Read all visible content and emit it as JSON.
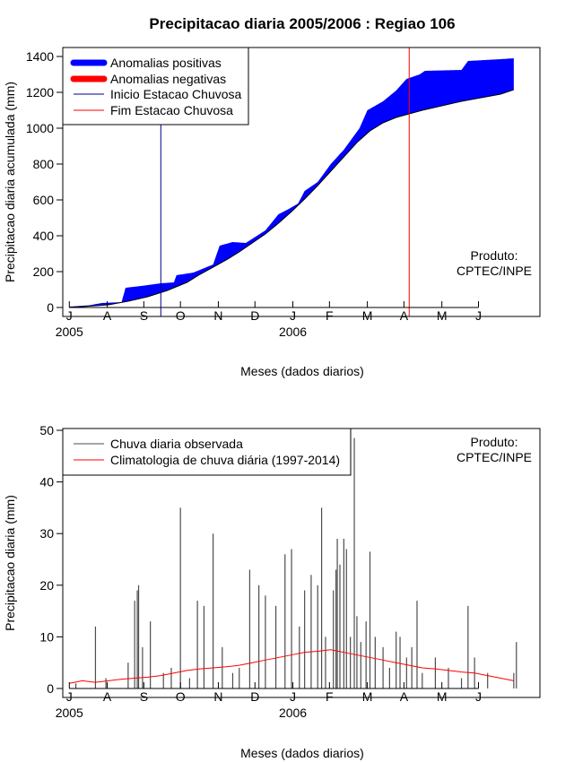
{
  "title": "Precipitacao diaria 2005/2006 : Regiao 106",
  "chart_data": [
    {
      "type": "area",
      "ylabel": "Precipitacao diaria acumulada (mm)",
      "xlabel": "Meses (dados diarios)",
      "ylim": [
        0,
        1400
      ],
      "yticks": [
        0,
        200,
        400,
        600,
        800,
        1000,
        1200,
        1400
      ],
      "xlim_days": [
        -5,
        360
      ],
      "month_ticks": [
        {
          "label": "J",
          "day": 0
        },
        {
          "label": "A",
          "day": 29
        },
        {
          "label": "S",
          "day": 57
        },
        {
          "label": "O",
          "day": 85
        },
        {
          "label": "N",
          "day": 114
        },
        {
          "label": "D",
          "day": 142
        },
        {
          "label": "J",
          "day": 171
        },
        {
          "label": "F",
          "day": 199
        },
        {
          "label": "M",
          "day": 228
        },
        {
          "label": "A",
          "day": 256
        },
        {
          "label": "M",
          "day": 285
        },
        {
          "label": "J",
          "day": 313
        }
      ],
      "year_labels": [
        {
          "label": "2005",
          "day": 0
        },
        {
          "label": "2006",
          "day": 171
        }
      ],
      "legend": {
        "position": "top-left",
        "entries": [
          {
            "label": "Anomalias positivas",
            "color": "#0000ff",
            "style": "thick"
          },
          {
            "label": "Anomalias negativas",
            "color": "#ff0000",
            "style": "thick"
          },
          {
            "label": "Inicio Estacao Chuvosa",
            "color": "#00008b",
            "style": "thin"
          },
          {
            "label": "Fim Estacao Chuvosa",
            "color": "#ff0000",
            "style": "thin"
          }
        ]
      },
      "product_label": [
        "Produto:",
        "CPTEC/INPE"
      ],
      "rainy_season_start_day": 70,
      "rainy_season_end_day": 260,
      "observed_accumulated": [
        [
          0,
          5
        ],
        [
          15,
          12
        ],
        [
          25,
          25
        ],
        [
          40,
          30
        ],
        [
          43,
          110
        ],
        [
          55,
          120
        ],
        [
          70,
          135
        ],
        [
          80,
          140
        ],
        [
          82,
          180
        ],
        [
          95,
          195
        ],
        [
          110,
          240
        ],
        [
          115,
          345
        ],
        [
          125,
          365
        ],
        [
          135,
          360
        ],
        [
          150,
          430
        ],
        [
          160,
          520
        ],
        [
          168,
          550
        ],
        [
          175,
          580
        ],
        [
          180,
          650
        ],
        [
          190,
          700
        ],
        [
          200,
          800
        ],
        [
          210,
          880
        ],
        [
          215,
          930
        ],
        [
          222,
          1000
        ],
        [
          228,
          1100
        ],
        [
          240,
          1150
        ],
        [
          250,
          1210
        ],
        [
          258,
          1275
        ],
        [
          268,
          1300
        ],
        [
          272,
          1320
        ],
        [
          300,
          1325
        ],
        [
          305,
          1375
        ],
        [
          330,
          1385
        ],
        [
          340,
          1390
        ]
      ],
      "climatology_accumulated": [
        [
          0,
          0
        ],
        [
          30,
          15
        ],
        [
          45,
          35
        ],
        [
          60,
          60
        ],
        [
          75,
          95
        ],
        [
          90,
          140
        ],
        [
          100,
          185
        ],
        [
          110,
          225
        ],
        [
          120,
          265
        ],
        [
          130,
          310
        ],
        [
          140,
          360
        ],
        [
          150,
          410
        ],
        [
          160,
          470
        ],
        [
          170,
          535
        ],
        [
          180,
          605
        ],
        [
          190,
          680
        ],
        [
          200,
          760
        ],
        [
          210,
          840
        ],
        [
          220,
          920
        ],
        [
          230,
          985
        ],
        [
          240,
          1030
        ],
        [
          250,
          1060
        ],
        [
          260,
          1080
        ],
        [
          270,
          1100
        ],
        [
          285,
          1125
        ],
        [
          300,
          1150
        ],
        [
          315,
          1170
        ],
        [
          330,
          1190
        ],
        [
          340,
          1215
        ]
      ]
    },
    {
      "type": "bar",
      "ylabel": "Precipitacao diaria (mm)",
      "xlabel": "Meses (dados diarios)",
      "ylim": [
        0,
        50
      ],
      "yticks": [
        0,
        10,
        20,
        30,
        40,
        50
      ],
      "legend": {
        "position": "top-left",
        "entries": [
          {
            "label": "Chuva diaria observada",
            "color": "#4d4d4d"
          },
          {
            "label": "Climatologia de chuva diária (1997-2014)",
            "color": "#ff0000"
          }
        ]
      },
      "product_label": [
        "Produto:",
        "CPTEC/INPE"
      ],
      "observed_daily": [
        [
          5,
          1
        ],
        [
          20,
          12
        ],
        [
          28,
          2
        ],
        [
          45,
          5
        ],
        [
          50,
          17
        ],
        [
          52,
          19
        ],
        [
          53,
          20
        ],
        [
          56,
          8
        ],
        [
          62,
          13
        ],
        [
          72,
          3
        ],
        [
          78,
          4
        ],
        [
          85,
          35
        ],
        [
          92,
          2
        ],
        [
          98,
          17
        ],
        [
          103,
          16
        ],
        [
          110,
          30
        ],
        [
          117,
          8
        ],
        [
          125,
          3
        ],
        [
          130,
          4
        ],
        [
          138,
          23
        ],
        [
          145,
          20
        ],
        [
          150,
          18
        ],
        [
          158,
          16
        ],
        [
          165,
          26
        ],
        [
          170,
          27
        ],
        [
          176,
          12
        ],
        [
          180,
          19
        ],
        [
          185,
          22
        ],
        [
          190,
          20
        ],
        [
          193,
          35
        ],
        [
          196,
          10
        ],
        [
          202,
          19
        ],
        [
          204,
          23
        ],
        [
          205,
          29
        ],
        [
          207,
          24
        ],
        [
          210,
          29
        ],
        [
          212,
          27
        ],
        [
          215,
          10
        ],
        [
          218,
          48.5
        ],
        [
          220,
          14
        ],
        [
          223,
          9
        ],
        [
          227,
          13
        ],
        [
          230,
          26.5
        ],
        [
          234,
          10
        ],
        [
          240,
          8
        ],
        [
          245,
          4
        ],
        [
          250,
          11
        ],
        [
          253,
          10
        ],
        [
          258,
          6
        ],
        [
          262,
          8
        ],
        [
          266,
          17
        ],
        [
          270,
          3
        ],
        [
          280,
          6
        ],
        [
          290,
          4
        ],
        [
          300,
          2
        ],
        [
          305,
          16
        ],
        [
          310,
          6
        ],
        [
          320,
          3
        ],
        [
          340,
          3
        ],
        [
          342,
          9
        ]
      ],
      "climatology_daily": [
        [
          0,
          1
        ],
        [
          10,
          1.5
        ],
        [
          20,
          1.2
        ],
        [
          30,
          1.5
        ],
        [
          40,
          1.8
        ],
        [
          50,
          2
        ],
        [
          60,
          2.2
        ],
        [
          70,
          2.5
        ],
        [
          80,
          3
        ],
        [
          90,
          3.5
        ],
        [
          100,
          3.8
        ],
        [
          110,
          4
        ],
        [
          120,
          4.2
        ],
        [
          130,
          4.5
        ],
        [
          140,
          5
        ],
        [
          150,
          5.5
        ],
        [
          160,
          6
        ],
        [
          170,
          6.5
        ],
        [
          180,
          7
        ],
        [
          190,
          7.2
        ],
        [
          200,
          7.5
        ],
        [
          210,
          7
        ],
        [
          220,
          6.5
        ],
        [
          230,
          6
        ],
        [
          240,
          5.5
        ],
        [
          250,
          5
        ],
        [
          260,
          4.5
        ],
        [
          270,
          4
        ],
        [
          280,
          3.8
        ],
        [
          290,
          3.5
        ],
        [
          300,
          3.2
        ],
        [
          310,
          3
        ],
        [
          320,
          2.5
        ],
        [
          330,
          2
        ],
        [
          340,
          1.5
        ]
      ]
    }
  ]
}
